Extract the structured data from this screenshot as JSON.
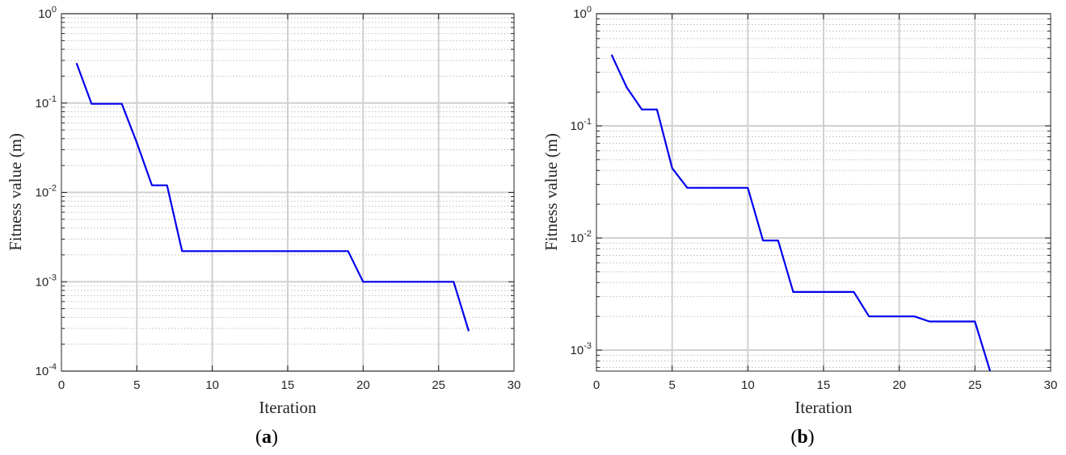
{
  "colors": {
    "line": "#0000ee",
    "major_grid": "#d0d0d0",
    "minor_grid": "#bdbdbd",
    "axes": "#262626"
  },
  "chart_data": [
    {
      "type": "line",
      "scale_y": "log",
      "grid": "on (major solid, minor dotted)",
      "xlabel": "Iteration",
      "ylabel": "Fitness value (m)",
      "xlim": [
        0,
        30
      ],
      "ylim": [
        0.0001,
        1
      ],
      "x_ticks": [
        "0",
        "5",
        "10",
        "15",
        "20",
        "25",
        "30"
      ],
      "y_ticks": [
        {
          "value": 0.0001,
          "base": "10",
          "exp": "-4"
        },
        {
          "value": 0.001,
          "base": "10",
          "exp": "-3"
        },
        {
          "value": 0.01,
          "base": "10",
          "exp": "-2"
        },
        {
          "value": 0.1,
          "base": "10",
          "exp": "-1"
        },
        {
          "value": 1,
          "base": "10",
          "exp": "0"
        }
      ],
      "caption_prefix": "(",
      "caption_letter": "a",
      "caption_suffix": ")",
      "series": [
        {
          "x": [
            1,
            2,
            3,
            4,
            5,
            6,
            7,
            8,
            9,
            10,
            11,
            12,
            13,
            14,
            15,
            16,
            17,
            18,
            19,
            20,
            21,
            22,
            23,
            24,
            25,
            26,
            27
          ],
          "y": [
            0.28,
            0.098,
            0.098,
            0.098,
            0.036,
            0.012,
            0.012,
            0.0022,
            0.0022,
            0.0022,
            0.0022,
            0.0022,
            0.0022,
            0.0022,
            0.0022,
            0.0022,
            0.0022,
            0.0022,
            0.0022,
            0.001,
            0.001,
            0.001,
            0.001,
            0.001,
            0.001,
            0.001,
            0.00028
          ]
        }
      ]
    },
    {
      "type": "line",
      "scale_y": "log",
      "grid": "on (major solid, minor dotted)",
      "xlabel": "Iteration",
      "ylabel": "Fitness value (m)",
      "xlim": [
        0,
        30
      ],
      "ylim": [
        0.00065,
        1
      ],
      "x_ticks": [
        "0",
        "5",
        "10",
        "15",
        "20",
        "25",
        "30"
      ],
      "y_ticks": [
        {
          "value": 0.001,
          "base": "10",
          "exp": "-3"
        },
        {
          "value": 0.01,
          "base": "10",
          "exp": "-2"
        },
        {
          "value": 0.1,
          "base": "10",
          "exp": "-1"
        },
        {
          "value": 1,
          "base": "10",
          "exp": "0"
        }
      ],
      "caption_prefix": "(",
      "caption_letter": "b",
      "caption_suffix": ")",
      "series": [
        {
          "x": [
            1,
            2,
            3,
            4,
            5,
            6,
            7,
            8,
            9,
            10,
            11,
            12,
            13,
            14,
            15,
            16,
            17,
            18,
            19,
            20,
            21,
            22,
            23,
            24,
            25,
            26
          ],
          "y": [
            0.43,
            0.22,
            0.14,
            0.14,
            0.042,
            0.028,
            0.028,
            0.028,
            0.028,
            0.028,
            0.0095,
            0.0095,
            0.0033,
            0.0033,
            0.0033,
            0.0033,
            0.0033,
            0.002,
            0.002,
            0.002,
            0.002,
            0.0018,
            0.0018,
            0.0018,
            0.0018,
            0.00065
          ]
        }
      ]
    }
  ]
}
